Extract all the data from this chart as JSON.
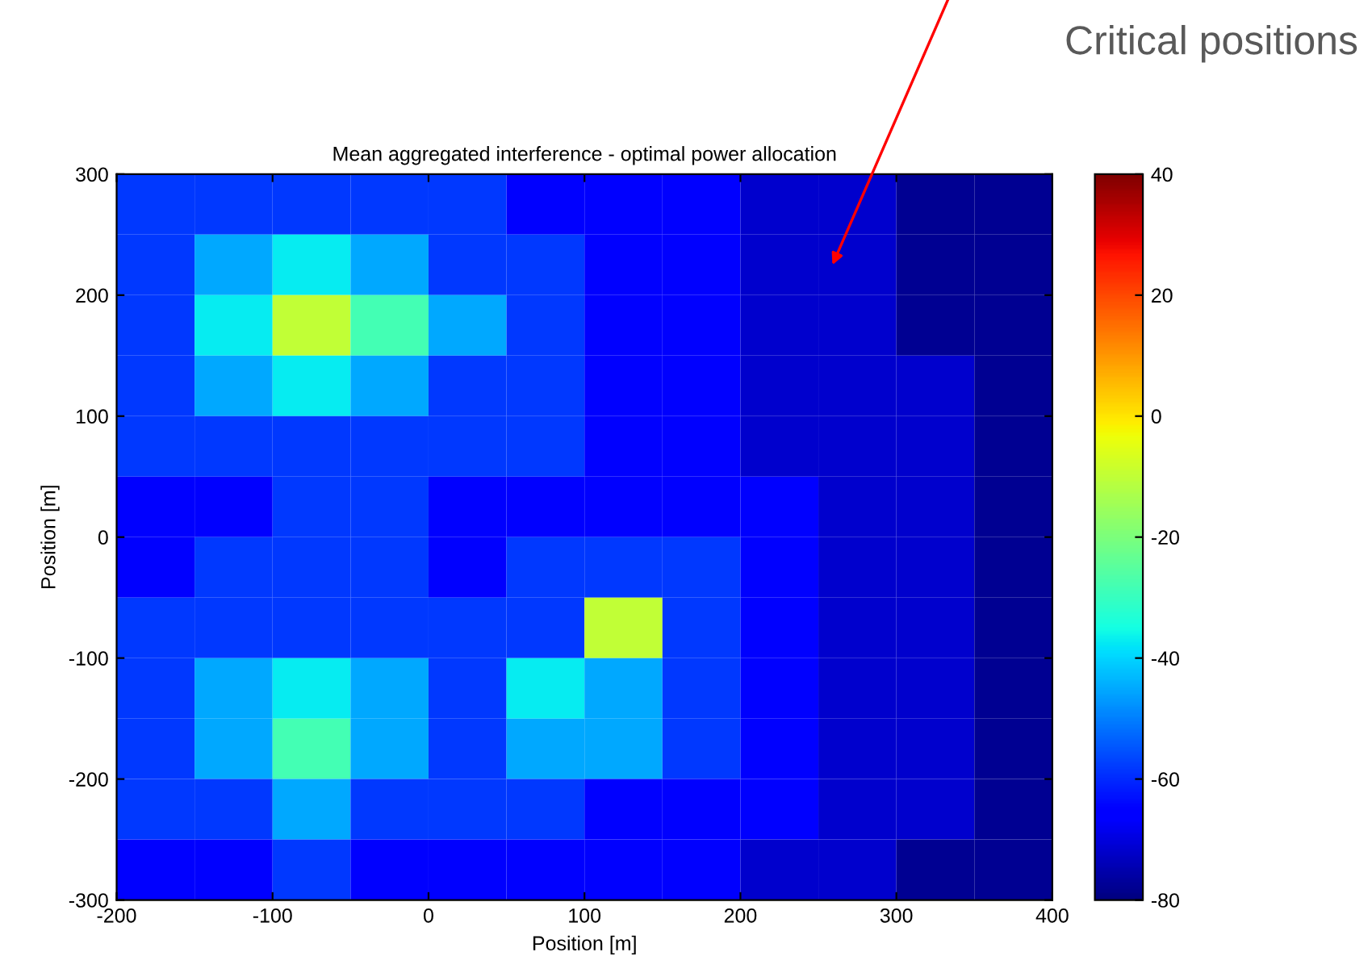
{
  "chart_data": {
    "type": "heatmap",
    "title": "Mean aggregated interference - optimal power allocation",
    "xlabel": "Position [m]",
    "ylabel": "Position [m]",
    "x": [
      -175,
      -125,
      -75,
      -25,
      25,
      75,
      125,
      175,
      225,
      275,
      325,
      375
    ],
    "y": [
      275,
      225,
      175,
      125,
      75,
      25,
      -25,
      -75,
      -125,
      -175,
      -225,
      -275
    ],
    "cells": [
      [
        -58,
        -58,
        -58,
        -58,
        -58,
        -66,
        -66,
        -66,
        -72,
        -72,
        -78,
        -78
      ],
      [
        -58,
        -45,
        -37,
        -45,
        -58,
        -58,
        -66,
        -66,
        -72,
        -72,
        -78,
        -78
      ],
      [
        -58,
        -37,
        -10,
        -28,
        -45,
        -58,
        -66,
        -66,
        -72,
        -72,
        -78,
        -78
      ],
      [
        -58,
        -45,
        -37,
        -45,
        -58,
        -58,
        -66,
        -66,
        -72,
        -72,
        -72,
        -78
      ],
      [
        -58,
        -58,
        -58,
        -58,
        -58,
        -58,
        -66,
        -66,
        -72,
        -72,
        -72,
        -78
      ],
      [
        -66,
        -66,
        -58,
        -58,
        -66,
        -66,
        -66,
        -66,
        -66,
        -72,
        -72,
        -78
      ],
      [
        -66,
        -58,
        -58,
        -58,
        -66,
        -58,
        -58,
        -58,
        -66,
        -72,
        -72,
        -78
      ],
      [
        -58,
        -58,
        -58,
        -58,
        -58,
        -58,
        -10,
        -58,
        -66,
        -72,
        -72,
        -78
      ],
      [
        -58,
        -45,
        -37,
        -45,
        -58,
        -37,
        -45,
        -58,
        -66,
        -72,
        -72,
        -78
      ],
      [
        -58,
        -45,
        -28,
        -45,
        -58,
        -45,
        -45,
        -58,
        -66,
        -72,
        -72,
        -78
      ],
      [
        -58,
        -58,
        -45,
        -58,
        -58,
        -58,
        -66,
        -66,
        -66,
        -72,
        -72,
        -78
      ],
      [
        -66,
        -66,
        -58,
        -66,
        -66,
        -66,
        -66,
        -66,
        -72,
        -72,
        -78,
        -78
      ]
    ],
    "xlim": [
      -200,
      400
    ],
    "ylim": [
      -300,
      300
    ],
    "xticks": [
      -200,
      -100,
      0,
      100,
      200,
      300,
      400
    ],
    "yticks": [
      -300,
      -200,
      -100,
      0,
      100,
      200,
      300
    ],
    "clim": [
      -80,
      40
    ],
    "cticks": [
      -80,
      -60,
      -40,
      -20,
      0,
      20,
      40
    ],
    "grid": false,
    "legend": false,
    "annotations": [
      "Critical positions"
    ]
  }
}
